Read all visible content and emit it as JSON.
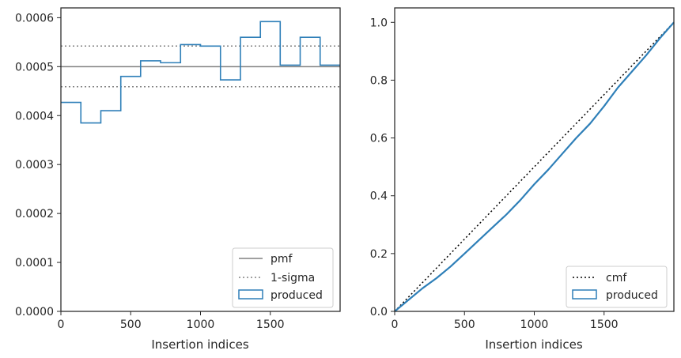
{
  "colors": {
    "produced": "#2e7fb8",
    "pmf": "#808080",
    "sigma": "#808080",
    "cmf": "#000000",
    "axes": "#262626"
  },
  "chart_data": [
    {
      "type": "histogram",
      "xlabel": "Insertion indices",
      "ylabel": "",
      "xlim": [
        0,
        2000
      ],
      "ylim": [
        0,
        0.00062
      ],
      "xticks": [
        0,
        500,
        1000,
        1500
      ],
      "yticks": [
        0,
        0.0001,
        0.0002,
        0.0003,
        0.0004,
        0.0005,
        0.0006
      ],
      "ytick_labels": [
        "0.0000",
        "0.0001",
        "0.0002",
        "0.0003",
        "0.0004",
        "0.0005",
        "0.0006"
      ],
      "bin_edges": [
        0,
        143,
        286,
        429,
        571,
        714,
        857,
        1000,
        1143,
        1286,
        1429,
        1571,
        1714,
        1857,
        2000
      ],
      "series": [
        {
          "name": "produced",
          "values": [
            0.000427,
            0.000385,
            0.00041,
            0.00048,
            0.000512,
            0.000508,
            0.000545,
            0.000542,
            0.000473,
            0.00056,
            0.000592,
            0.000503,
            0.00056,
            0.000503
          ]
        }
      ],
      "lines": [
        {
          "name": "pmf",
          "y": 0.0005,
          "style": "solid"
        },
        {
          "name": "1-sigma",
          "y": [
            0.000542,
            0.000459
          ],
          "style": "dotted"
        }
      ],
      "legend": {
        "placement": "lower-right",
        "entries": [
          "pmf",
          "1-sigma",
          "produced"
        ]
      }
    },
    {
      "type": "line",
      "xlabel": "Insertion indices",
      "ylabel": "",
      "xlim": [
        0,
        2000
      ],
      "ylim": [
        0,
        1.05
      ],
      "xticks": [
        0,
        500,
        1000,
        1500
      ],
      "yticks": [
        0,
        0.2,
        0.4,
        0.6,
        0.8,
        1.0
      ],
      "ytick_labels": [
        "0.0",
        "0.2",
        "0.4",
        "0.6",
        "0.8",
        "1.0"
      ],
      "series": [
        {
          "name": "cmf",
          "style": "dotted",
          "x": [
            0,
            2000
          ],
          "y": [
            0,
            1.0
          ]
        },
        {
          "name": "produced",
          "style": "step",
          "x": [
            0,
            100,
            200,
            300,
            400,
            500,
            600,
            700,
            800,
            900,
            1000,
            1100,
            1200,
            1300,
            1400,
            1500,
            1600,
            1700,
            1800,
            1900,
            2000
          ],
          "y": [
            0,
            0.04,
            0.08,
            0.115,
            0.155,
            0.2,
            0.245,
            0.29,
            0.335,
            0.385,
            0.44,
            0.49,
            0.545,
            0.6,
            0.65,
            0.71,
            0.775,
            0.83,
            0.885,
            0.945,
            1.0
          ]
        }
      ],
      "legend": {
        "placement": "lower-right",
        "entries": [
          "cmf",
          "produced"
        ]
      }
    }
  ]
}
